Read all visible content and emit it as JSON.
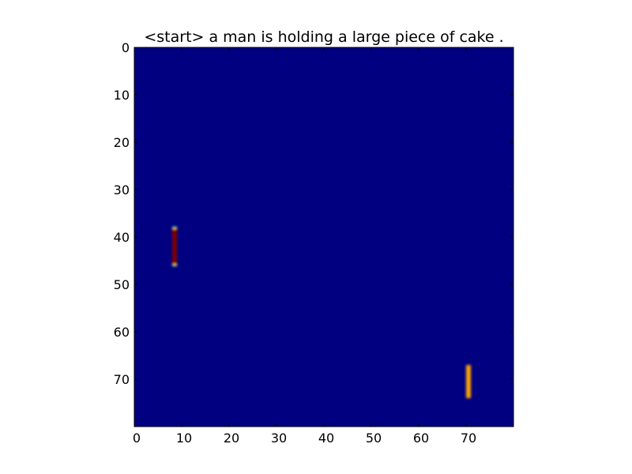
{
  "chart_data": {
    "type": "heatmap",
    "title": "<start> a man is holding a large piece of cake .",
    "xlabel": "",
    "ylabel": "",
    "xlim": [
      0,
      80
    ],
    "ylim": [
      80,
      0
    ],
    "grid": false,
    "x_ticks": [
      0,
      10,
      20,
      30,
      40,
      50,
      60,
      70
    ],
    "y_ticks": [
      0,
      10,
      20,
      30,
      40,
      50,
      60,
      70
    ],
    "background_value": 0.0,
    "background_color": "#000080",
    "colormap": "jet",
    "hotspots": [
      {
        "x_range": [
          8,
          9
        ],
        "y_range": [
          38,
          46
        ],
        "value": 1.0,
        "color": "#800000"
      },
      {
        "x_range": [
          70,
          71
        ],
        "y_range": [
          67,
          74
        ],
        "value": 0.75,
        "color": "#ffa500"
      }
    ]
  }
}
